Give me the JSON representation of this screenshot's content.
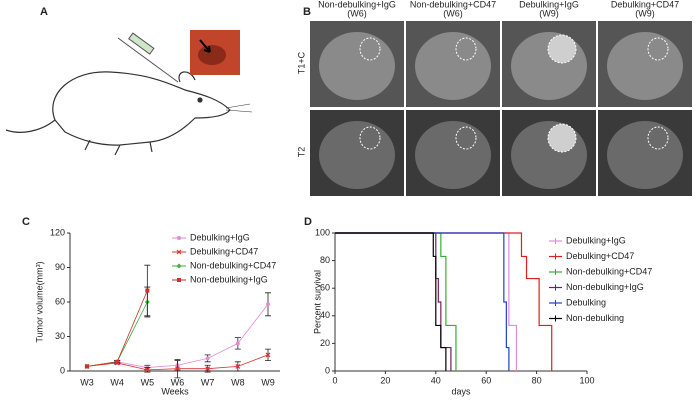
{
  "panel_labels": [
    "A",
    "B"
  ],
  "mri": {
    "columns": [
      {
        "name": "Non-debulking+IgG",
        "week": "(W6)"
      },
      {
        "name": "Non-debulking+CD47",
        "week": "(W6)"
      },
      {
        "name": "Debulking+IgG",
        "week": "(W9)"
      },
      {
        "name": "Debulking+CD47",
        "week": "(W9)"
      }
    ],
    "rows": [
      "T1+C",
      "T2"
    ]
  },
  "chart_data": [
    {
      "type": "line",
      "panel": "C",
      "ylabel": "Tumor volume(mm³)",
      "xlabel": "Weeks",
      "categories": [
        "W3",
        "W4",
        "W5",
        "W6",
        "W7",
        "W8",
        "W9"
      ],
      "ylim": [
        0,
        120
      ],
      "yticks": [
        0,
        30,
        60,
        90,
        120
      ],
      "series": [
        {
          "name": "Debulking+IgG",
          "color": "#e48ad6",
          "marker": "circle",
          "values": [
            4,
            8,
            3,
            5,
            11,
            24,
            58
          ],
          "errors": [
            0,
            1,
            2,
            4,
            3,
            5,
            10
          ]
        },
        {
          "name": "Debulking+CD47",
          "color": "#e03030",
          "marker": "x",
          "values": [
            4,
            7,
            1,
            2,
            2,
            4,
            14
          ],
          "errors": [
            0,
            1,
            2,
            8,
            3,
            4,
            5
          ]
        },
        {
          "name": "Non-debulking+CD47",
          "color": "#3cb043",
          "marker": "diamond",
          "values": [
            4,
            8,
            60,
            null,
            null,
            null,
            null
          ],
          "errors": [
            0,
            1,
            13,
            null,
            null,
            null,
            null
          ]
        },
        {
          "name": "Non-debulking+IgG",
          "color": "#c83232",
          "marker": "square",
          "values": [
            4,
            8,
            70,
            null,
            null,
            null,
            null
          ],
          "errors": [
            0,
            1,
            22,
            null,
            null,
            null,
            null
          ]
        }
      ]
    },
    {
      "type": "survival",
      "panel": "D",
      "ylabel": "Percent survival",
      "xlabel": "days",
      "xlim": [
        0,
        100
      ],
      "xticks": [
        0,
        20,
        40,
        60,
        80,
        100
      ],
      "ylim": [
        0,
        100
      ],
      "yticks": [
        0,
        20,
        40,
        60,
        80,
        100
      ],
      "series": [
        {
          "name": "Debulking+IgG",
          "color": "#e48ad6",
          "x": [
            0,
            69,
            72
          ],
          "values": [
            100,
            33,
            0
          ]
        },
        {
          "name": "Debulking+CD47",
          "color": "#e02020",
          "x": [
            0,
            74,
            76,
            81,
            86
          ],
          "values": [
            100,
            83,
            67,
            33,
            0
          ]
        },
        {
          "name": "Non-debulking+CD47",
          "color": "#33b033",
          "x": [
            0,
            42,
            44,
            48
          ],
          "values": [
            100,
            83,
            33,
            0
          ]
        },
        {
          "name": "Non-debulking+IgG",
          "color": "#7a1a5e",
          "x": [
            0,
            40,
            41,
            42,
            46
          ],
          "values": [
            100,
            67,
            50,
            17,
            0
          ]
        },
        {
          "name": "Debulking",
          "color": "#2040d0",
          "x": [
            0,
            67,
            68,
            69
          ],
          "values": [
            100,
            50,
            17,
            0
          ]
        },
        {
          "name": "Non-debulking",
          "color": "#000000",
          "x": [
            0,
            39,
            40,
            42,
            44
          ],
          "values": [
            100,
            83,
            33,
            17,
            0
          ]
        }
      ]
    }
  ]
}
